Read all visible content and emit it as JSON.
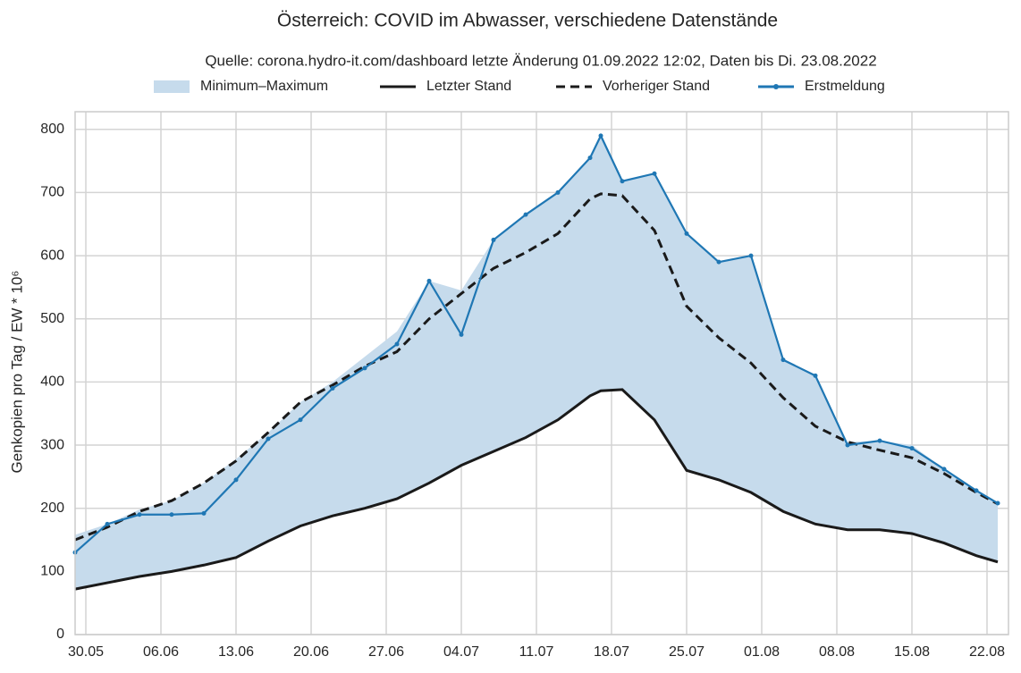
{
  "chart_data": {
    "type": "line",
    "title": "Österreich: COVID im Abwasser, verschiedene Datenstände",
    "subtitle": "Quelle: corona.hydro-it.com/dashboard letzte Änderung 01.09.2022 12:02, Daten bis Di. 23.08.2022",
    "y_label": "Genkopien pro Tag / EW * 10⁶",
    "x": [
      "29.05",
      "01.06",
      "04.06",
      "07.06",
      "10.06",
      "13.06",
      "16.06",
      "19.06",
      "22.06",
      "25.06",
      "28.06",
      "01.07",
      "04.07",
      "07.07",
      "10.07",
      "13.07",
      "16.07",
      "17.07",
      "19.07",
      "22.07",
      "25.07",
      "28.07",
      "31.07",
      "03.08",
      "06.08",
      "09.08",
      "12.08",
      "15.08",
      "18.08",
      "21.08",
      "23.08"
    ],
    "band": {
      "name": "Minimum–Maximum",
      "color": "#c6dbec",
      "lower": [
        72,
        82,
        92,
        100,
        110,
        122,
        148,
        172,
        188,
        200,
        215,
        240,
        268,
        290,
        312,
        340,
        378,
        386,
        388,
        340,
        260,
        245,
        225,
        195,
        175,
        166,
        166,
        160,
        145,
        125,
        115
      ],
      "upper": [
        158,
        175,
        198,
        212,
        240,
        278,
        320,
        368,
        400,
        440,
        480,
        560,
        545,
        625,
        665,
        700,
        755,
        790,
        718,
        730,
        635,
        590,
        600,
        435,
        410,
        305,
        307,
        300,
        262,
        228,
        208
      ]
    },
    "series": [
      {
        "name": "Letzter Stand",
        "color": "#1a1a1a",
        "style": "solid",
        "values": [
          72,
          82,
          92,
          100,
          110,
          122,
          148,
          172,
          188,
          200,
          215,
          240,
          268,
          290,
          312,
          340,
          378,
          386,
          388,
          340,
          260,
          245,
          225,
          195,
          175,
          166,
          166,
          160,
          145,
          125,
          115
        ]
      },
      {
        "name": "Vorheriger Stand",
        "color": "#1a1a1a",
        "style": "dashed",
        "values": [
          150,
          170,
          195,
          212,
          240,
          275,
          320,
          368,
          395,
          425,
          448,
          500,
          540,
          580,
          605,
          635,
          690,
          698,
          695,
          640,
          520,
          470,
          430,
          375,
          330,
          305,
          292,
          280,
          255,
          225,
          207
        ]
      },
      {
        "name": "Erstmeldung",
        "color": "#1f77b4",
        "style": "marker",
        "values": [
          130,
          175,
          190,
          190,
          192,
          245,
          310,
          340,
          390,
          422,
          460,
          560,
          475,
          625,
          665,
          700,
          755,
          790,
          718,
          730,
          635,
          590,
          600,
          435,
          410,
          300,
          307,
          295,
          262,
          228,
          208
        ]
      }
    ],
    "xlim": [
      "29.05",
      "24.08"
    ],
    "xticks": [
      "30.05",
      "06.06",
      "13.06",
      "20.06",
      "27.06",
      "04.07",
      "11.07",
      "18.07",
      "25.07",
      "01.08",
      "08.08",
      "15.08",
      "22.08"
    ],
    "ylim": [
      0,
      828
    ],
    "yticks": [
      0,
      100,
      200,
      300,
      400,
      500,
      600,
      700,
      800
    ],
    "grid": true
  }
}
